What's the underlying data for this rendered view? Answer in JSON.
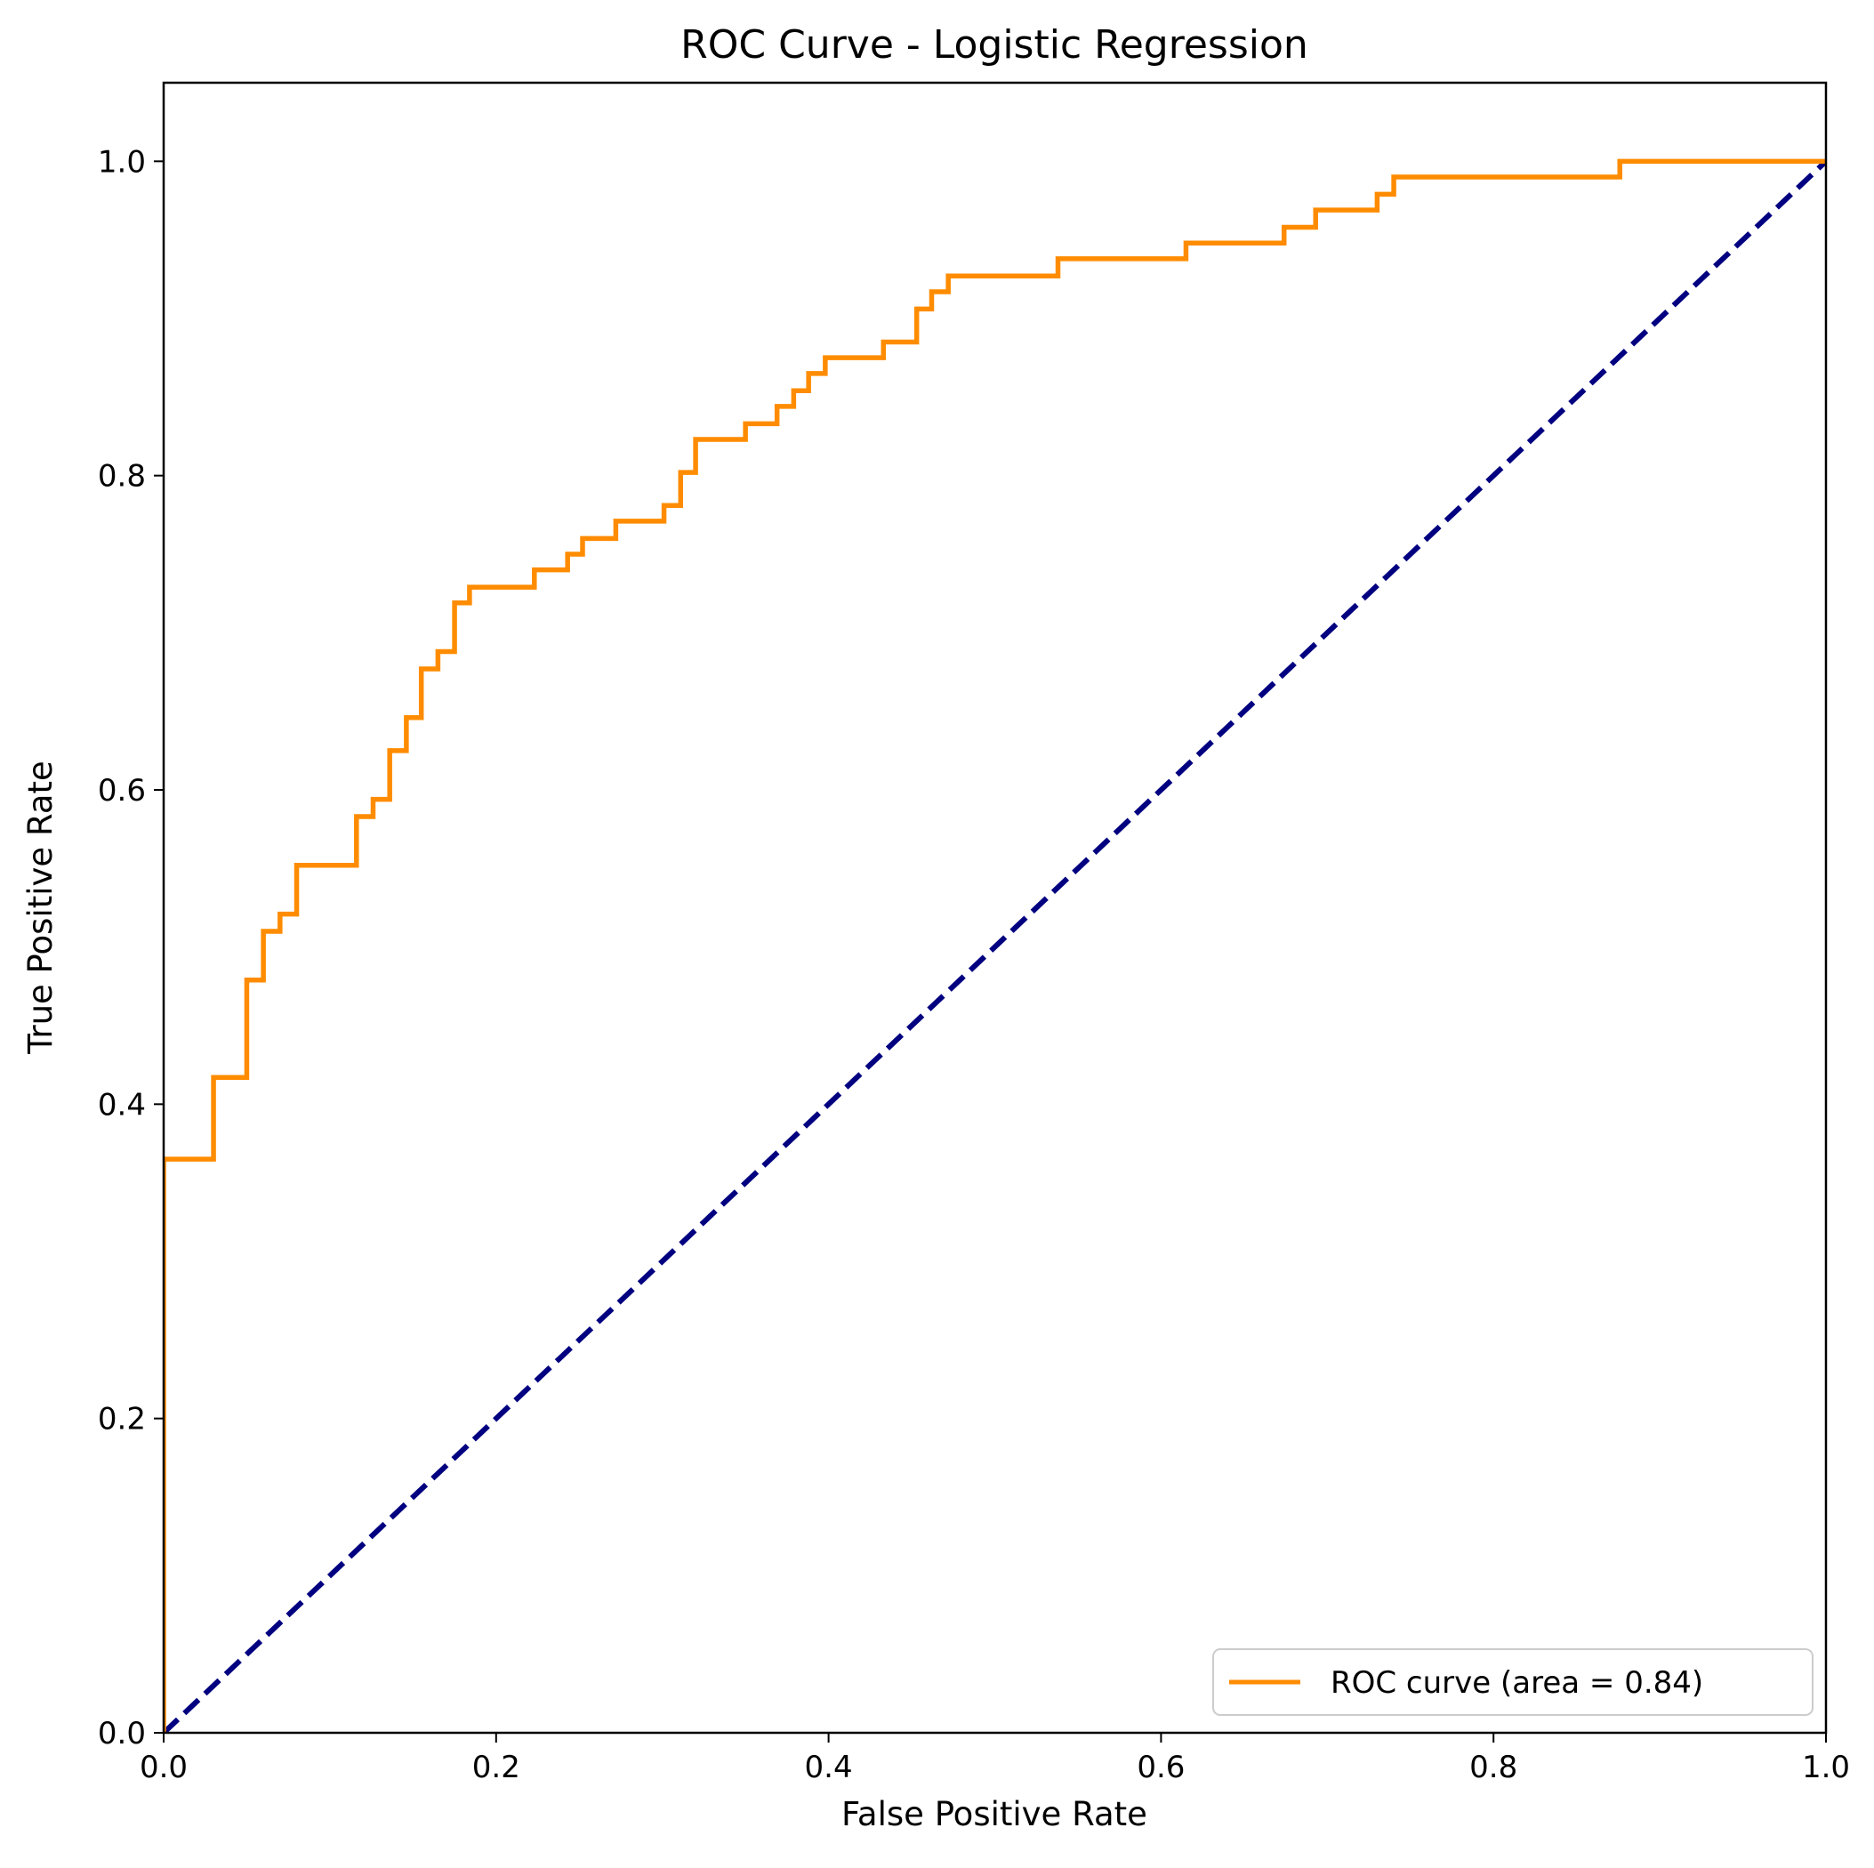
{
  "chart_data": {
    "type": "line",
    "title": "ROC Curve - Logistic Regression",
    "xlabel": "False Positive Rate",
    "ylabel": "True Positive Rate",
    "xlim": [
      0.0,
      1.0
    ],
    "ylim": [
      0.0,
      1.05
    ],
    "xticks": [
      "0.0",
      "0.2",
      "0.4",
      "0.6",
      "0.8",
      "1.0"
    ],
    "yticks": [
      "0.0",
      "0.2",
      "0.4",
      "0.6",
      "0.8",
      "1.0"
    ],
    "grid": false,
    "legend_position": "lower-right",
    "series": [
      {
        "name": "ROC curve (area = 0.84)",
        "color": "#ff8c00",
        "style": "solid",
        "x": [
          0.0,
          0.0,
          0.03,
          0.03,
          0.05,
          0.05,
          0.06,
          0.06,
          0.07,
          0.07,
          0.08,
          0.08,
          0.116,
          0.116,
          0.126,
          0.126,
          0.136,
          0.136,
          0.146,
          0.146,
          0.155,
          0.155,
          0.165,
          0.165,
          0.175,
          0.175,
          0.184,
          0.184,
          0.223,
          0.223,
          0.243,
          0.243,
          0.252,
          0.252,
          0.272,
          0.272,
          0.301,
          0.301,
          0.311,
          0.311,
          0.32,
          0.32,
          0.35,
          0.35,
          0.369,
          0.369,
          0.379,
          0.379,
          0.388,
          0.388,
          0.398,
          0.398,
          0.433,
          0.433,
          0.453,
          0.453,
          0.462,
          0.462,
          0.472,
          0.472,
          0.538,
          0.538,
          0.615,
          0.615,
          0.674,
          0.674,
          0.693,
          0.693,
          0.73,
          0.73,
          0.74,
          0.74,
          0.876,
          0.876,
          1.0
        ],
        "y": [
          0.0,
          0.365,
          0.365,
          0.417,
          0.417,
          0.479,
          0.479,
          0.51,
          0.51,
          0.521,
          0.521,
          0.552,
          0.552,
          0.583,
          0.583,
          0.594,
          0.594,
          0.625,
          0.625,
          0.646,
          0.646,
          0.677,
          0.677,
          0.688,
          0.688,
          0.719,
          0.719,
          0.729,
          0.729,
          0.74,
          0.74,
          0.75,
          0.75,
          0.76,
          0.76,
          0.771,
          0.771,
          0.781,
          0.781,
          0.802,
          0.802,
          0.823,
          0.823,
          0.833,
          0.833,
          0.844,
          0.844,
          0.854,
          0.854,
          0.865,
          0.865,
          0.875,
          0.875,
          0.885,
          0.885,
          0.906,
          0.906,
          0.917,
          0.917,
          0.927,
          0.927,
          0.938,
          0.938,
          0.948,
          0.948,
          0.958,
          0.958,
          0.969,
          0.969,
          0.979,
          0.979,
          0.99,
          0.99,
          1.0,
          1.0
        ]
      },
      {
        "name": "",
        "color": "#000080",
        "style": "dashed",
        "x": [
          0.0,
          1.0
        ],
        "y": [
          0.0,
          1.0
        ]
      }
    ]
  }
}
